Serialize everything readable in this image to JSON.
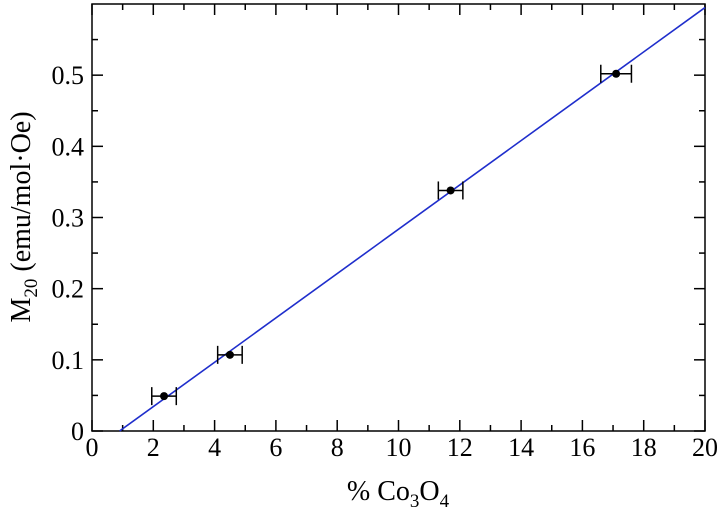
{
  "chart_data": {
    "type": "scatter",
    "title": "",
    "xlabel": {
      "prefix": "% Co",
      "sub1": "3",
      "mid": "O",
      "sub2": "4"
    },
    "ylabel": {
      "prefix": "M",
      "sub": "20",
      "suffix": " (emu/mol·Oe)"
    },
    "xlim": [
      0,
      20
    ],
    "ylim": [
      0,
      0.6
    ],
    "xticks": [
      0,
      2,
      4,
      6,
      8,
      10,
      12,
      14,
      16,
      18,
      20
    ],
    "xtick_labels": [
      "0",
      "2",
      "4",
      "6",
      "8",
      "10",
      "12",
      "14",
      "16",
      "18",
      "20"
    ],
    "yticks": [
      0,
      0.1,
      0.2,
      0.3,
      0.4,
      0.5
    ],
    "ytick_labels": [
      "0",
      "0.1",
      "0.2",
      "0.3",
      "0.4",
      "0.5"
    ],
    "grid": false,
    "series": [
      {
        "kind": "points",
        "color": "#000000",
        "points": [
          {
            "x": 2.35,
            "y": 0.049,
            "xerr": 0.4
          },
          {
            "x": 4.5,
            "y": 0.107,
            "xerr": 0.4
          },
          {
            "x": 11.7,
            "y": 0.338,
            "xerr": 0.4
          },
          {
            "x": 17.1,
            "y": 0.502,
            "xerr": 0.5
          }
        ]
      },
      {
        "kind": "fit-line",
        "color": "#1f2ecc",
        "x": [
          0.9,
          20
        ],
        "y": [
          0.0,
          0.595
        ]
      }
    ]
  }
}
